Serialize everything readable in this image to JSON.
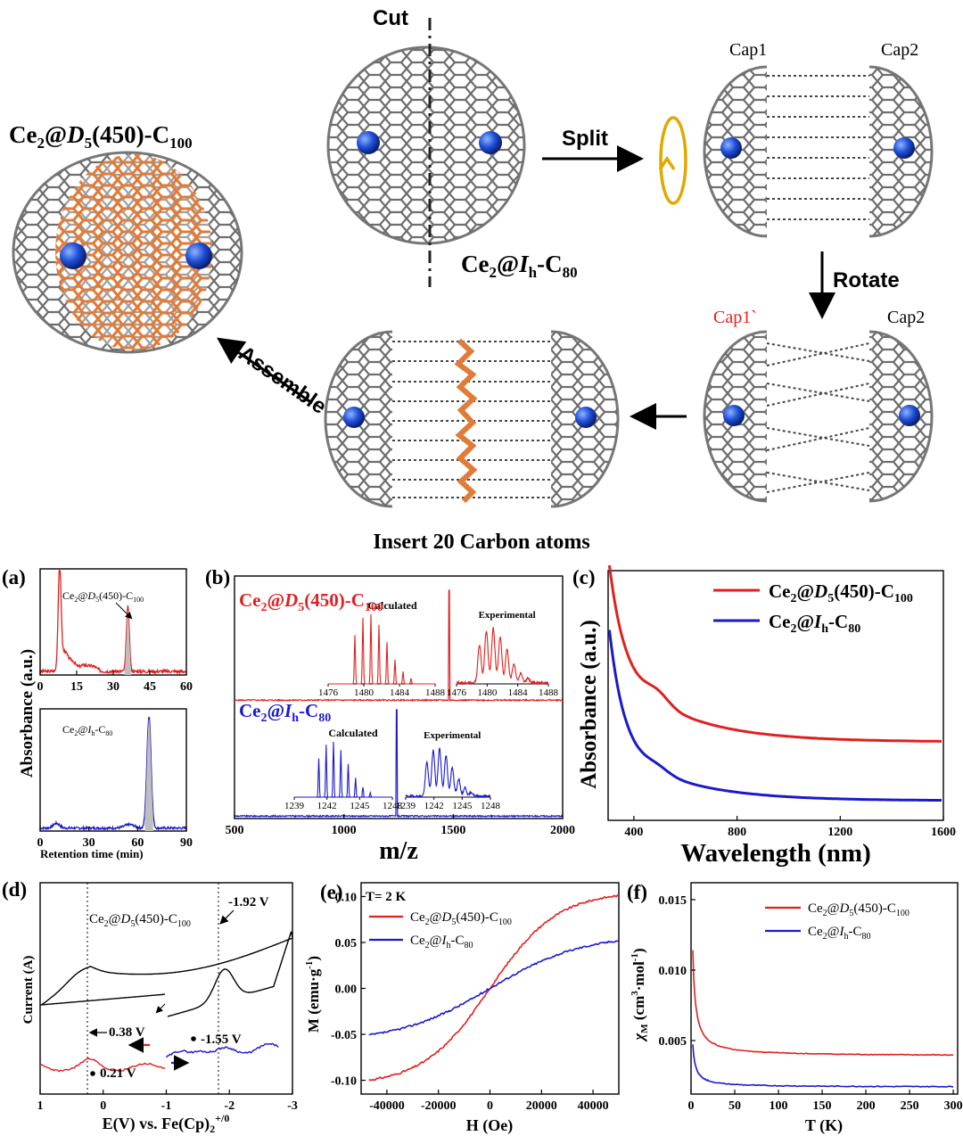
{
  "scheme": {
    "cut_label": "Cut",
    "split_label": "Split",
    "rotate_label": "Rotate",
    "assemble_label": "Assemble",
    "cap1_label": "Cap1",
    "cap2_label": "Cap2",
    "cap1_rot_label": "Cap1`",
    "cap2_rot_label": "Cap2",
    "c100_name": {
      "a": "Ce",
      "b": "2",
      "c": "@",
      "d": "D",
      "e": "5",
      "f": "(450)-C",
      "g": "100"
    },
    "c80_name": {
      "a": "Ce",
      "b": "2",
      "c": "@",
      "d": "I",
      "e": "h",
      "f": "-C",
      "g": "80"
    },
    "insert_label": "Insert 20 Carbon atoms",
    "colors": {
      "cage": "#888888",
      "atom": "#1f4fd8",
      "orange": "#e07b39",
      "cap1_rot": "#e02020"
    }
  },
  "panels": {
    "a": "(a)",
    "b": "(b)",
    "c": "(c)",
    "d": "(d)",
    "e": "(e)",
    "f": "(f)"
  },
  "chart_data": [
    {
      "id": "a",
      "type": "line",
      "ylabel": "Absorbance (a.u.)",
      "xlabel": "Retention time (min)",
      "top": {
        "label": {
          "a": "Ce",
          "b": "2",
          "c": "@",
          "d": "D",
          "e": "5",
          "f": "(450)-C",
          "g": "100"
        },
        "xlim": [
          0,
          60
        ],
        "xticks": [
          0,
          15,
          30,
          45,
          60
        ],
        "color": "#e02020",
        "peaks": [
          [
            8,
            1.0
          ],
          [
            36,
            0.62
          ]
        ]
      },
      "bottom": {
        "label": {
          "a": "Ce",
          "b": "2",
          "c": "@",
          "d": "I",
          "e": "h",
          "f": "-C",
          "g": "80"
        },
        "xlim": [
          0,
          90
        ],
        "xticks": [
          0,
          30,
          60,
          90
        ],
        "color": "#1a1acc",
        "peaks": [
          [
            67,
            0.95
          ]
        ]
      }
    },
    {
      "id": "b",
      "type": "line",
      "xlabel": "m/z",
      "xlim": [
        500,
        2000
      ],
      "xticks": [
        500,
        1000,
        1500,
        2000
      ],
      "series": [
        {
          "name": {
            "a": "Ce",
            "b": "2",
            "c": "@",
            "d": "D",
            "e": "5",
            "f": "(450)-C",
            "g": "100"
          },
          "color": "#e02020",
          "peak": 1481,
          "inset_calc": {
            "label": "Calculated",
            "ticks": [
              "1476",
              "1480",
              "1484",
              "1488"
            ]
          },
          "inset_exp": {
            "label": "Experimental",
            "ticks": [
              "1476",
              "1480",
              "1484",
              "1488"
            ]
          }
        },
        {
          "name": {
            "a": "Ce",
            "b": "2",
            "c": "@",
            "d": "I",
            "e": "h",
            "f": "-C",
            "g": "80"
          },
          "color": "#1a1acc",
          "peak": 1241,
          "inset_calc": {
            "label": "Calculated",
            "ticks": [
              "1239",
              "1242",
              "1245",
              "1248"
            ]
          },
          "inset_exp": {
            "label": "Experimental",
            "ticks": [
              "1239",
              "1242",
              "1245",
              "1248"
            ]
          }
        }
      ]
    },
    {
      "id": "c",
      "type": "line",
      "xlabel": "Wavelength (nm)",
      "ylabel": "Absorbance (a.u.)",
      "xlim": [
        300,
        1600
      ],
      "xticks": [
        400,
        800,
        1200,
        1600
      ],
      "legend": "top-right",
      "series": [
        {
          "name": {
            "a": "Ce",
            "b": "2",
            "c": "@",
            "d": "D",
            "e": "5",
            "f": "(450)-C",
            "g": "100"
          },
          "color": "#e02020"
        },
        {
          "name": {
            "a": "Ce",
            "b": "2",
            "c": "@",
            "d": "I",
            "e": "h",
            "f": "-C",
            "g": "80"
          },
          "color": "#1a1acc"
        }
      ]
    },
    {
      "id": "d",
      "type": "line",
      "xlabel": "E(V) vs. Fe(Cp)2+/0",
      "xlabel_main": "E(V) vs. Fe(Cp)",
      "xlabel_sub": "2",
      "xlabel_sup": "+/0",
      "ylabel": "Current (A)",
      "xlim": [
        1,
        -3
      ],
      "xticks": [
        "1",
        "0",
        "-1",
        "-2",
        "-3"
      ],
      "label": {
        "a": "Ce",
        "b": "2",
        "c": "@",
        "d": "D",
        "e": "5",
        "f": "(450)-C",
        "g": "100"
      },
      "annotations": [
        "-1.92 V",
        "0.38 V",
        "-1.55 V",
        "0.21 V"
      ],
      "dashed_lines": [
        0.38,
        -1.92
      ]
    },
    {
      "id": "e",
      "type": "line",
      "xlabel": "H (Oe)",
      "ylabel": "M (emu·g-1)",
      "ylabel_main": "M (emu·g",
      "ylabel_sup": "-1",
      "ylabel_close": ")",
      "title": "T= 2 K",
      "xlim": [
        -50000,
        50000
      ],
      "ylim": [
        -0.115,
        0.115
      ],
      "xticks": [
        "-40000",
        "-20000",
        "0",
        "20000",
        "40000"
      ],
      "yticks": [
        "-0.10",
        "-0.05",
        "0.00",
        "0.05",
        "0.10"
      ],
      "legend": "top-left",
      "series": [
        {
          "name": {
            "a": "Ce",
            "b": "2",
            "c": "@",
            "d": "D",
            "e": "5",
            "f": "(450)-C",
            "g": "100"
          },
          "color": "#e02020",
          "M_at_50000": 0.101
        },
        {
          "name": {
            "a": "Ce",
            "b": "2",
            "c": "@",
            "d": "I",
            "e": "h",
            "f": "-C",
            "g": "80"
          },
          "color": "#1a1acc",
          "M_at_50000": 0.052
        }
      ]
    },
    {
      "id": "f",
      "type": "line",
      "xlabel": "T (K)",
      "ylabel_main": "χ",
      "ylabel_sub": "M",
      "ylabel_rest": " (cm",
      "ylabel_sup1": "3",
      "ylabel_mid": "·mol",
      "ylabel_sup2": "-1",
      "ylabel_end": ")",
      "xlim": [
        0,
        305
      ],
      "ylim": [
        0.0012,
        0.0162
      ],
      "xticks": [
        "0",
        "50",
        "100",
        "150",
        "200",
        "250",
        "300"
      ],
      "yticks": [
        "0.005",
        "0.010",
        "0.015"
      ],
      "legend": "top-right",
      "series": [
        {
          "name": {
            "a": "Ce",
            "b": "2",
            "c": "@",
            "d": "D",
            "e": "5",
            "f": "(450)-C",
            "g": "100"
          },
          "color": "#e02020",
          "start": [
            2,
            0.0114
          ],
          "end": [
            300,
            0.0039
          ]
        },
        {
          "name": {
            "a": "Ce",
            "b": "2",
            "c": "@",
            "d": "I",
            "e": "h",
            "f": "-C",
            "g": "80"
          },
          "color": "#1a1acc",
          "start": [
            2,
            0.0047
          ],
          "end": [
            300,
            0.0017
          ]
        }
      ]
    }
  ]
}
